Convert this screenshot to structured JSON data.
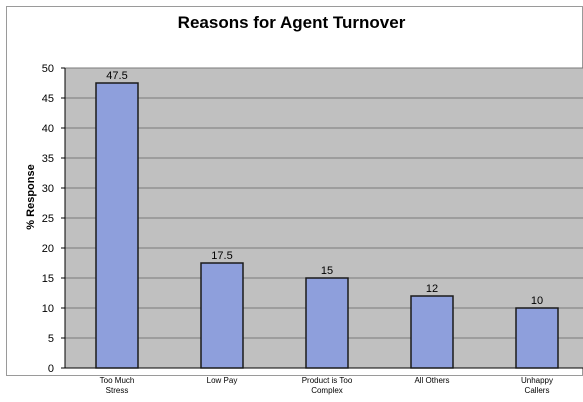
{
  "colors": {
    "plot_background": "#c0c0c0",
    "bar_fill": "#8e9fdc",
    "bar_stroke": "#1a1a1a",
    "gridline": "#7a7a7a",
    "text": "#000000"
  },
  "chart_data": {
    "type": "bar",
    "title": "Reasons for Agent Turnover",
    "xlabel": "",
    "ylabel": "% Response",
    "ylim": [
      0,
      50
    ],
    "yticks": [
      0,
      5,
      10,
      15,
      20,
      25,
      30,
      35,
      40,
      45,
      50
    ],
    "grid": true,
    "categories": [
      [
        "Too Much",
        "Stress"
      ],
      [
        "Low Pay"
      ],
      [
        "Product is Too",
        "Complex"
      ],
      [
        "All Others"
      ],
      [
        "Unhappy",
        "Callers"
      ]
    ],
    "values": [
      47.5,
      17.5,
      15,
      12,
      10
    ],
    "value_labels": [
      "47.5",
      "17.5",
      "15",
      "12",
      "10"
    ]
  }
}
